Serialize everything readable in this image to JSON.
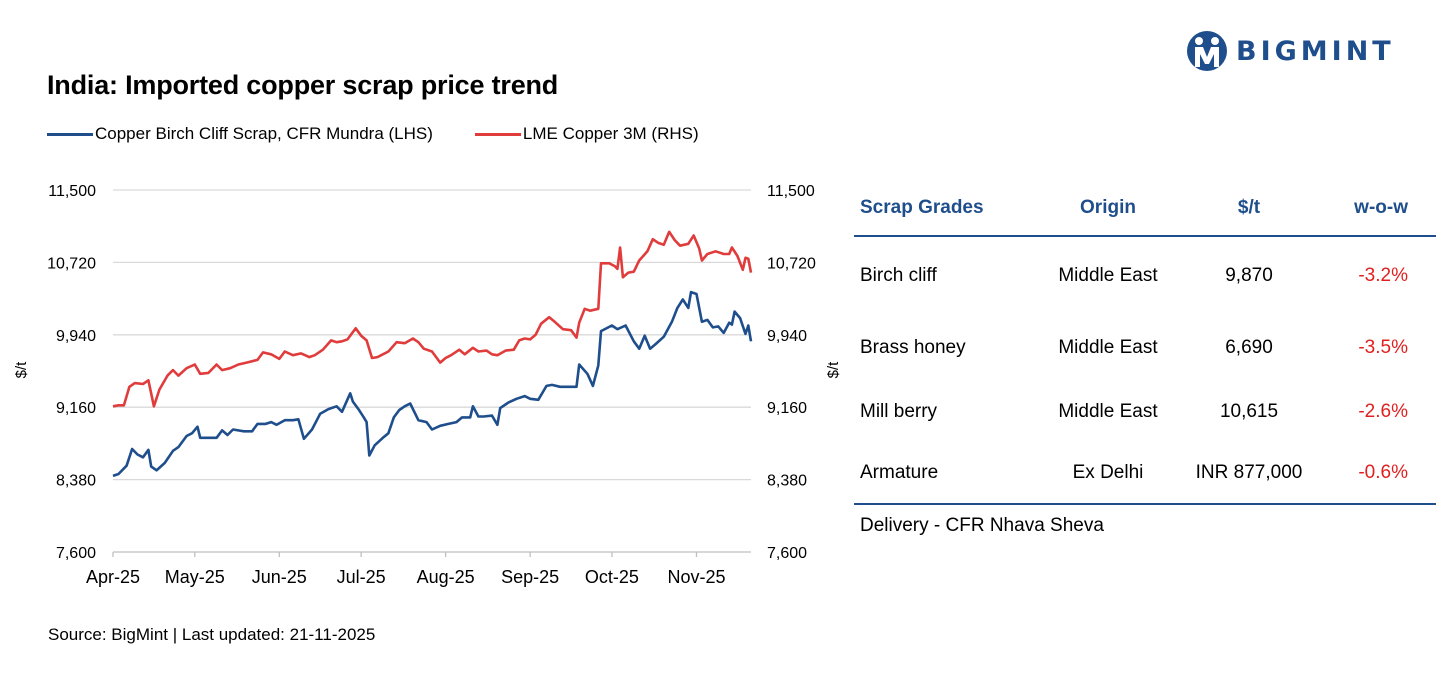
{
  "title": "India: Imported copper scrap price trend",
  "brand": {
    "name": "BIGMINT",
    "color": "#1f4e8c"
  },
  "source": "Source: BigMint | Last updated: 21-11-2025",
  "chart_data": {
    "type": "line",
    "title": "India: Imported copper scrap price trend",
    "ylabel": "$/t",
    "ylabel_right": "$/t",
    "ylim": [
      7600,
      11500
    ],
    "yticks": [
      7600,
      8380,
      9160,
      9940,
      10720,
      11500
    ],
    "ytick_labels": [
      "7,600",
      "8,380",
      "9,160",
      "9,940",
      "10,720",
      "11,500"
    ],
    "xlim": [
      "2025-04-01",
      "2025-11-21"
    ],
    "xticks": [
      "2025-04-01",
      "2025-05-01",
      "2025-06-01",
      "2025-07-01",
      "2025-08-01",
      "2025-09-01",
      "2025-10-01",
      "2025-11-01"
    ],
    "xtick_labels": [
      "Apr-25",
      "May-25",
      "Jun-25",
      "Jul-25",
      "Aug-25",
      "Sep-25",
      "Oct-25",
      "Nov-25"
    ],
    "grid": "horizontal",
    "legend_position": "top-left",
    "series": [
      {
        "name": "Copper Birch Cliff Scrap, CFR Mundra (LHS)",
        "axis": "left",
        "color": "#1f4e8c",
        "points": [
          [
            "2025-04-01",
            8420
          ],
          [
            "2025-04-03",
            8440
          ],
          [
            "2025-04-06",
            8530
          ],
          [
            "2025-04-08",
            8710
          ],
          [
            "2025-04-10",
            8650
          ],
          [
            "2025-04-12",
            8620
          ],
          [
            "2025-04-14",
            8700
          ],
          [
            "2025-04-15",
            8520
          ],
          [
            "2025-04-17",
            8480
          ],
          [
            "2025-04-20",
            8560
          ],
          [
            "2025-04-23",
            8690
          ],
          [
            "2025-04-25",
            8730
          ],
          [
            "2025-04-28",
            8850
          ],
          [
            "2025-04-30",
            8880
          ],
          [
            "2025-05-02",
            8950
          ],
          [
            "2025-05-03",
            8830
          ],
          [
            "2025-05-06",
            8830
          ],
          [
            "2025-05-09",
            8830
          ],
          [
            "2025-05-11",
            8910
          ],
          [
            "2025-05-13",
            8860
          ],
          [
            "2025-05-15",
            8920
          ],
          [
            "2025-05-19",
            8900
          ],
          [
            "2025-05-22",
            8900
          ],
          [
            "2025-05-24",
            8980
          ],
          [
            "2025-05-27",
            8980
          ],
          [
            "2025-05-29",
            9000
          ],
          [
            "2025-05-31",
            8970
          ],
          [
            "2025-06-03",
            9020
          ],
          [
            "2025-06-06",
            9020
          ],
          [
            "2025-06-08",
            9030
          ],
          [
            "2025-06-10",
            8820
          ],
          [
            "2025-06-13",
            8920
          ],
          [
            "2025-06-16",
            9090
          ],
          [
            "2025-06-19",
            9140
          ],
          [
            "2025-06-22",
            9170
          ],
          [
            "2025-06-24",
            9110
          ],
          [
            "2025-06-27",
            9310
          ],
          [
            "2025-06-28",
            9220
          ],
          [
            "2025-06-30",
            9140
          ],
          [
            "2025-07-02",
            9050
          ],
          [
            "2025-07-03",
            9000
          ],
          [
            "2025-07-04",
            8640
          ],
          [
            "2025-07-06",
            8750
          ],
          [
            "2025-07-09",
            8830
          ],
          [
            "2025-07-11",
            8880
          ],
          [
            "2025-07-13",
            9050
          ],
          [
            "2025-07-15",
            9130
          ],
          [
            "2025-07-17",
            9170
          ],
          [
            "2025-07-19",
            9200
          ],
          [
            "2025-07-22",
            9020
          ],
          [
            "2025-07-25",
            9000
          ],
          [
            "2025-07-27",
            8920
          ],
          [
            "2025-07-30",
            8960
          ],
          [
            "2025-08-02",
            8980
          ],
          [
            "2025-08-05",
            9000
          ],
          [
            "2025-08-07",
            9050
          ],
          [
            "2025-08-10",
            9050
          ],
          [
            "2025-08-11",
            9170
          ],
          [
            "2025-08-13",
            9060
          ],
          [
            "2025-08-15",
            9060
          ],
          [
            "2025-08-18",
            9070
          ],
          [
            "2025-08-20",
            8970
          ],
          [
            "2025-08-21",
            9150
          ],
          [
            "2025-08-24",
            9210
          ],
          [
            "2025-08-27",
            9250
          ],
          [
            "2025-08-30",
            9280
          ],
          [
            "2025-09-01",
            9250
          ],
          [
            "2025-09-04",
            9240
          ],
          [
            "2025-09-07",
            9390
          ],
          [
            "2025-09-09",
            9400
          ],
          [
            "2025-09-12",
            9380
          ],
          [
            "2025-09-15",
            9380
          ],
          [
            "2025-09-18",
            9380
          ],
          [
            "2025-09-19",
            9620
          ],
          [
            "2025-09-22",
            9520
          ],
          [
            "2025-09-24",
            9390
          ],
          [
            "2025-09-26",
            9610
          ],
          [
            "2025-09-27",
            9980
          ],
          [
            "2025-10-01",
            10040
          ],
          [
            "2025-10-03",
            10000
          ],
          [
            "2025-10-06",
            10040
          ],
          [
            "2025-10-09",
            9870
          ],
          [
            "2025-10-11",
            9790
          ],
          [
            "2025-10-13",
            9930
          ],
          [
            "2025-10-15",
            9790
          ],
          [
            "2025-10-17",
            9840
          ],
          [
            "2025-10-20",
            9920
          ],
          [
            "2025-10-23",
            10080
          ],
          [
            "2025-10-25",
            10230
          ],
          [
            "2025-10-27",
            10320
          ],
          [
            "2025-10-29",
            10230
          ],
          [
            "2025-10-30",
            10400
          ],
          [
            "2025-11-01",
            10380
          ],
          [
            "2025-11-03",
            10080
          ],
          [
            "2025-11-05",
            10100
          ],
          [
            "2025-11-07",
            10020
          ],
          [
            "2025-11-09",
            10030
          ],
          [
            "2025-11-11",
            9960
          ],
          [
            "2025-11-13",
            10070
          ],
          [
            "2025-11-14",
            10050
          ],
          [
            "2025-11-15",
            10190
          ],
          [
            "2025-11-17",
            10120
          ],
          [
            "2025-11-19",
            9950
          ],
          [
            "2025-11-20",
            10040
          ],
          [
            "2025-11-21",
            9870
          ]
        ]
      },
      {
        "name": "LME Copper 3M (RHS)",
        "axis": "right",
        "color": "#e03c3c",
        "points": [
          [
            "2025-04-01",
            9170
          ],
          [
            "2025-04-03",
            9180
          ],
          [
            "2025-04-05",
            9180
          ],
          [
            "2025-04-07",
            9380
          ],
          [
            "2025-04-09",
            9420
          ],
          [
            "2025-04-12",
            9410
          ],
          [
            "2025-04-14",
            9450
          ],
          [
            "2025-04-16",
            9170
          ],
          [
            "2025-04-18",
            9350
          ],
          [
            "2025-04-21",
            9500
          ],
          [
            "2025-04-23",
            9560
          ],
          [
            "2025-04-25",
            9500
          ],
          [
            "2025-04-28",
            9580
          ],
          [
            "2025-05-01",
            9620
          ],
          [
            "2025-05-03",
            9520
          ],
          [
            "2025-05-06",
            9530
          ],
          [
            "2025-05-09",
            9620
          ],
          [
            "2025-05-11",
            9560
          ],
          [
            "2025-05-14",
            9580
          ],
          [
            "2025-05-17",
            9620
          ],
          [
            "2025-05-20",
            9640
          ],
          [
            "2025-05-24",
            9670
          ],
          [
            "2025-05-26",
            9750
          ],
          [
            "2025-05-29",
            9730
          ],
          [
            "2025-06-01",
            9680
          ],
          [
            "2025-06-03",
            9760
          ],
          [
            "2025-06-06",
            9720
          ],
          [
            "2025-06-09",
            9740
          ],
          [
            "2025-06-12",
            9700
          ],
          [
            "2025-06-14",
            9720
          ],
          [
            "2025-06-17",
            9780
          ],
          [
            "2025-06-20",
            9880
          ],
          [
            "2025-06-22",
            9860
          ],
          [
            "2025-06-24",
            9870
          ],
          [
            "2025-06-26",
            9890
          ],
          [
            "2025-06-29",
            10010
          ],
          [
            "2025-07-01",
            9930
          ],
          [
            "2025-07-03",
            9880
          ],
          [
            "2025-07-05",
            9690
          ],
          [
            "2025-07-07",
            9700
          ],
          [
            "2025-07-09",
            9730
          ],
          [
            "2025-07-11",
            9760
          ],
          [
            "2025-07-14",
            9860
          ],
          [
            "2025-07-17",
            9850
          ],
          [
            "2025-07-20",
            9900
          ],
          [
            "2025-07-22",
            9860
          ],
          [
            "2025-07-24",
            9790
          ],
          [
            "2025-07-27",
            9760
          ],
          [
            "2025-07-30",
            9640
          ],
          [
            "2025-08-01",
            9690
          ],
          [
            "2025-08-03",
            9720
          ],
          [
            "2025-08-06",
            9780
          ],
          [
            "2025-08-08",
            9730
          ],
          [
            "2025-08-11",
            9800
          ],
          [
            "2025-08-13",
            9760
          ],
          [
            "2025-08-16",
            9770
          ],
          [
            "2025-08-18",
            9730
          ],
          [
            "2025-08-20",
            9720
          ],
          [
            "2025-08-23",
            9770
          ],
          [
            "2025-08-26",
            9780
          ],
          [
            "2025-08-28",
            9880
          ],
          [
            "2025-08-30",
            9900
          ],
          [
            "2025-09-01",
            9890
          ],
          [
            "2025-09-03",
            9940
          ],
          [
            "2025-09-05",
            10060
          ],
          [
            "2025-09-08",
            10130
          ],
          [
            "2025-09-10",
            10080
          ],
          [
            "2025-09-13",
            10000
          ],
          [
            "2025-09-16",
            9990
          ],
          [
            "2025-09-18",
            9910
          ],
          [
            "2025-09-19",
            10070
          ],
          [
            "2025-09-21",
            10220
          ],
          [
            "2025-09-23",
            10200
          ],
          [
            "2025-09-26",
            10220
          ],
          [
            "2025-09-27",
            10710
          ],
          [
            "2025-09-30",
            10710
          ],
          [
            "2025-10-02",
            10680
          ],
          [
            "2025-10-03",
            10650
          ],
          [
            "2025-10-04",
            10880
          ],
          [
            "2025-10-05",
            10560
          ],
          [
            "2025-10-07",
            10610
          ],
          [
            "2025-10-09",
            10620
          ],
          [
            "2025-10-11",
            10740
          ],
          [
            "2025-10-14",
            10840
          ],
          [
            "2025-10-16",
            10970
          ],
          [
            "2025-10-18",
            10930
          ],
          [
            "2025-10-20",
            10910
          ],
          [
            "2025-10-22",
            11050
          ],
          [
            "2025-10-24",
            10960
          ],
          [
            "2025-10-26",
            10900
          ],
          [
            "2025-10-29",
            10920
          ],
          [
            "2025-10-31",
            11010
          ],
          [
            "2025-11-02",
            10870
          ],
          [
            "2025-11-03",
            10740
          ],
          [
            "2025-11-05",
            10810
          ],
          [
            "2025-11-08",
            10840
          ],
          [
            "2025-11-11",
            10810
          ],
          [
            "2025-11-13",
            10810
          ],
          [
            "2025-11-14",
            10880
          ],
          [
            "2025-11-16",
            10790
          ],
          [
            "2025-11-18",
            10640
          ],
          [
            "2025-11-19",
            10770
          ],
          [
            "2025-11-20",
            10760
          ],
          [
            "2025-11-21",
            10610
          ]
        ]
      }
    ]
  },
  "table": {
    "headers": [
      "Scrap Grades",
      "Origin",
      "$/t",
      "w-o-w"
    ],
    "rows": [
      {
        "grade": "Birch cliff",
        "origin": "Middle East",
        "price": "9,870",
        "wow": "-3.2%"
      },
      {
        "grade": "Brass honey",
        "origin": "Middle East",
        "price": "6,690",
        "wow": "-3.5%"
      },
      {
        "grade": "Mill berry",
        "origin": "Middle East",
        "price": "10,615",
        "wow": "-2.6%"
      },
      {
        "grade": "Armature",
        "origin": "Ex Delhi",
        "price": "INR 877,000",
        "wow": "-0.6%"
      }
    ],
    "delivery": "Delivery - CFR Nhava Sheva"
  }
}
